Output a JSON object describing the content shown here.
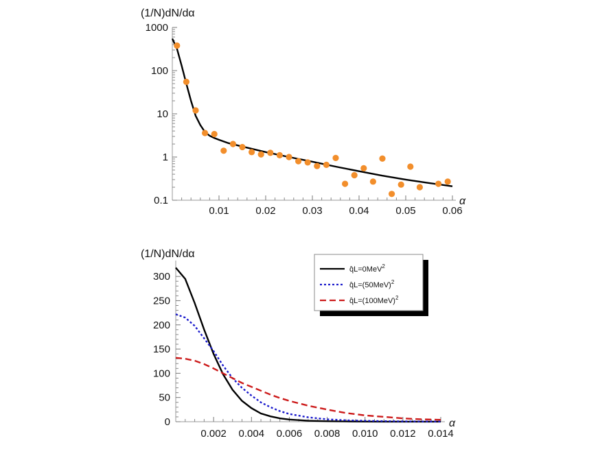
{
  "chart_data": [
    {
      "type": "scatter",
      "ylabel": "(1/N)dN/dα",
      "xlabel": "α",
      "yscale": "log",
      "xlim": [
        0,
        0.06
      ],
      "ylim": [
        0.1,
        1000
      ],
      "x_ticks": [
        0.01,
        0.02,
        0.03,
        0.04,
        0.05,
        0.06
      ],
      "x_tick_labels": [
        "0.01",
        "0.02",
        "0.03",
        "0.04",
        "0.05",
        "0.06"
      ],
      "y_ticks": [
        0.1,
        1,
        10,
        100,
        1000
      ],
      "y_tick_labels": [
        "0.1",
        "1",
        "10",
        "100",
        "1000"
      ],
      "grid": false,
      "colors": {
        "points": "#f28e2b",
        "curve": "#000000"
      },
      "series": [
        {
          "kind": "points",
          "x": [
            0.001,
            0.003,
            0.005,
            0.007,
            0.009,
            0.011,
            0.013,
            0.015,
            0.017,
            0.019,
            0.021,
            0.023,
            0.025,
            0.027,
            0.029,
            0.031,
            0.033,
            0.035,
            0.037,
            0.039,
            0.041,
            0.043,
            0.045,
            0.047,
            0.049,
            0.051,
            0.053,
            0.057,
            0.059
          ],
          "y": [
            380,
            55,
            12,
            3.6,
            3.4,
            1.4,
            2.0,
            1.7,
            1.3,
            1.15,
            1.25,
            1.1,
            1.0,
            0.8,
            0.75,
            0.62,
            0.66,
            0.95,
            0.24,
            0.38,
            0.55,
            0.27,
            0.92,
            0.14,
            0.23,
            0.6,
            0.2,
            0.24,
            0.27
          ]
        },
        {
          "kind": "line",
          "x": [
            0,
            0.001,
            0.002,
            0.003,
            0.004,
            0.005,
            0.006,
            0.007,
            0.008,
            0.009,
            0.01,
            0.012,
            0.015,
            0.02,
            0.025,
            0.03,
            0.035,
            0.04,
            0.045,
            0.05,
            0.055,
            0.06
          ],
          "y": [
            550,
            320,
            130,
            50,
            20,
            9,
            5.5,
            3.8,
            3.1,
            2.75,
            2.5,
            2.1,
            1.75,
            1.3,
            1.0,
            0.78,
            0.6,
            0.47,
            0.37,
            0.3,
            0.25,
            0.21
          ]
        }
      ]
    },
    {
      "type": "line",
      "ylabel": "(1/N)dN/dα",
      "xlabel": "α",
      "xlim": [
        0,
        0.014
      ],
      "ylim": [
        0,
        320
      ],
      "x_ticks": [
        0.002,
        0.004,
        0.006,
        0.008,
        0.01,
        0.012,
        0.014
      ],
      "x_tick_labels": [
        "0.002",
        "0.004",
        "0.006",
        "0.008",
        "0.010",
        "0.012",
        "0.014"
      ],
      "y_ticks": [
        0,
        50,
        100,
        150,
        200,
        250,
        300
      ],
      "y_tick_labels": [
        "0",
        "50",
        "100",
        "150",
        "200",
        "250",
        "300"
      ],
      "grid": false,
      "legend_position": "top-right",
      "x": [
        0,
        0.0005,
        0.001,
        0.0015,
        0.002,
        0.0025,
        0.003,
        0.0035,
        0.004,
        0.0045,
        0.005,
        0.0055,
        0.006,
        0.007,
        0.008,
        0.009,
        0.01,
        0.011,
        0.012,
        0.013,
        0.014
      ],
      "series": [
        {
          "name": "q̂L=0MeV²",
          "name_parts": {
            "q": "q̂",
            "mid": "L=0MeV",
            "sup": "2",
            "post": ""
          },
          "color": "#000000",
          "dash": "solid",
          "values": [
            318,
            295,
            245,
            190,
            140,
            98,
            66,
            43,
            28,
            17,
            11,
            7,
            4.5,
            2,
            1,
            0.5,
            0.3,
            0.2,
            0.1,
            0.1,
            0.1
          ]
        },
        {
          "name": "q̂L=(50MeV)²",
          "name_parts": {
            "q": "q̂",
            "mid": "L=(50MeV)",
            "sup": "2",
            "post": ""
          },
          "color": "#1a1acc",
          "dash": "dotted",
          "values": [
            222,
            215,
            198,
            172,
            146,
            116,
            90,
            70,
            54,
            40,
            30,
            22,
            16,
            9,
            5,
            3,
            2,
            1.2,
            0.7,
            0.4,
            0.3
          ]
        },
        {
          "name": "q̂L=(100MeV)²",
          "name_parts": {
            "q": "q̂",
            "mid": "L=(100MeV)",
            "sup": "2",
            "post": ""
          },
          "color": "#cc1a1a",
          "dash": "dashed",
          "values": [
            132,
            130,
            126,
            119,
            110,
            100,
            90,
            80,
            72,
            64,
            56,
            49,
            43,
            33,
            25,
            18,
            13,
            10,
            7,
            5,
            4
          ]
        }
      ]
    }
  ]
}
